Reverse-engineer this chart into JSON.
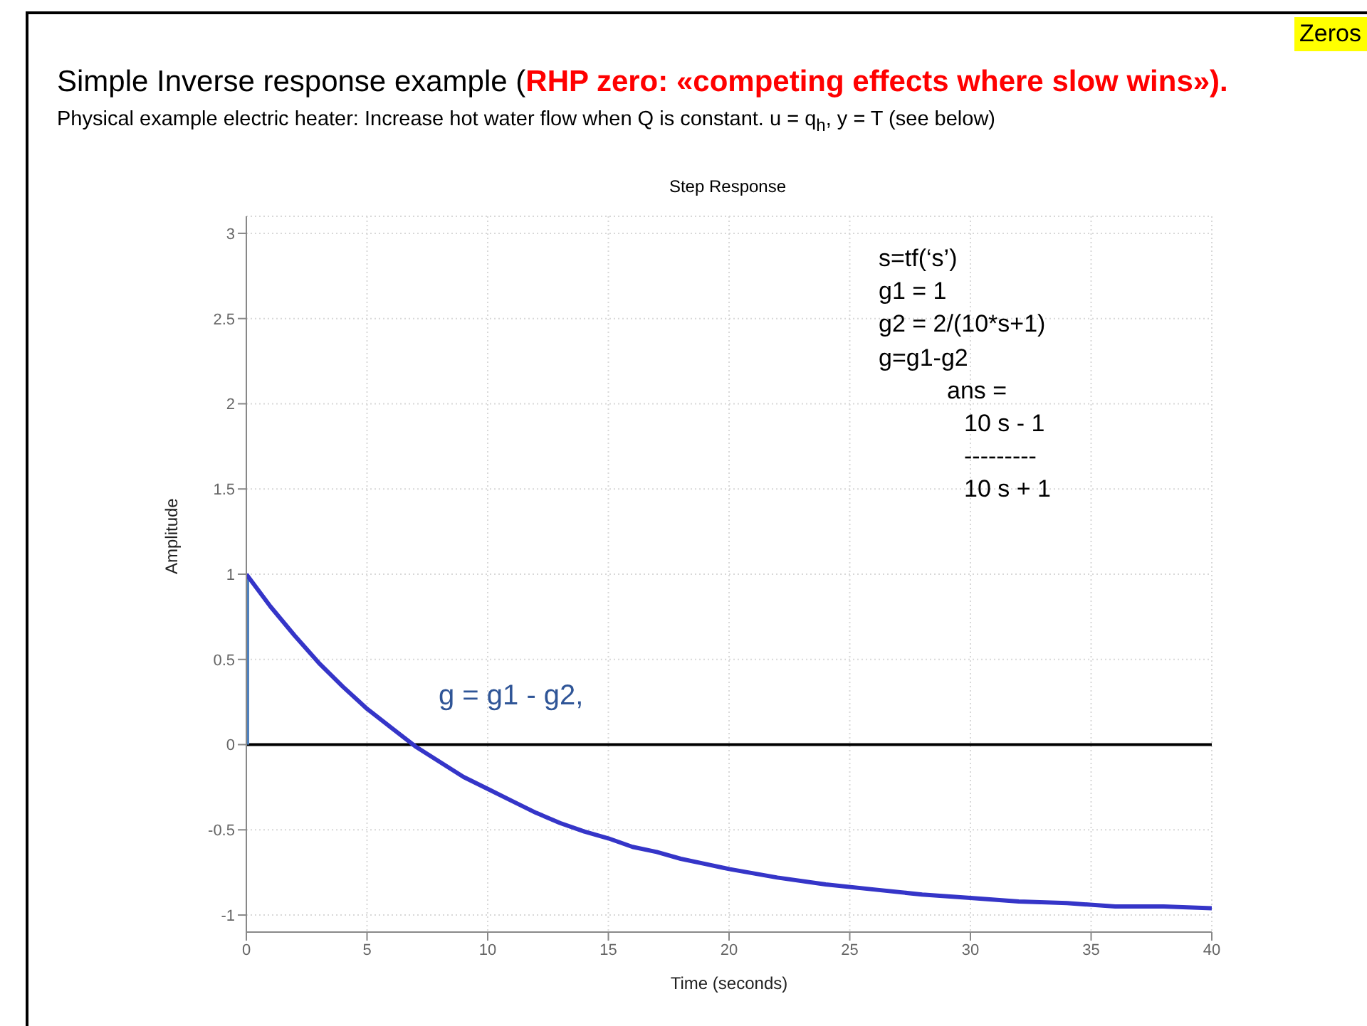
{
  "chart_data": {
    "type": "line",
    "title": "Simple Inverse response example (RHP zero: «competing effects where slow wins»).",
    "subtitle": "Physical example electric heater: Increase hot water flow when Q is constant. u = q$_{h}$, y = T (see below)",
    "xlabel": "Time (seconds)",
    "ylabel": "Amplitude",
    "annotations": [
      "Zeros",
      "Step Response",
      "s=tf(‘s’)",
      "g1 = 1",
      "g2 = 2/(10*s+1)",
      "g=g1-g2",
      "ans =",
      "10 s - 1",
      "---------",
      "10 s + 1",
      "g = g1 - g2,"
    ],
    "series": [
      {
        "color": "#4f81bd",
        "x": [
          0,
          0
        ],
        "values": [
          0,
          1
        ]
      },
      {
        "color": "#3535c8",
        "x": [
          0,
          1,
          2,
          3,
          4,
          5,
          6,
          7,
          8,
          9,
          10,
          11,
          12,
          13,
          14,
          15,
          16,
          17,
          18,
          19,
          20,
          22,
          24,
          26,
          28,
          30,
          32,
          34,
          36,
          38,
          40
        ],
        "values": [
          1,
          0.81,
          0.64,
          0.48,
          0.34,
          0.21,
          0.1,
          -0.01,
          -0.1,
          -0.19,
          -0.26,
          -0.33,
          -0.4,
          -0.46,
          -0.51,
          -0.55,
          -0.6,
          -0.63,
          -0.67,
          -0.7,
          -0.73,
          -0.78,
          -0.82,
          -0.85,
          -0.88,
          -0.9,
          -0.92,
          -0.93,
          -0.95,
          -0.95,
          -0.96
        ]
      }
    ],
    "xlim": [
      0,
      40
    ],
    "xticks": [
      0,
      5,
      10,
      15,
      20,
      25,
      30,
      35,
      40
    ],
    "ylim": [
      -1.1,
      3.1
    ],
    "yticks": [
      -1,
      -0.5,
      0,
      0.5,
      1,
      1.5,
      2,
      2.5,
      3
    ],
    "grid": true,
    "marker": "none",
    "line_style": "solid",
    "ref_lines": [
      {
        "axis": "y",
        "value": 0,
        "color": "#000000"
      }
    ]
  }
}
